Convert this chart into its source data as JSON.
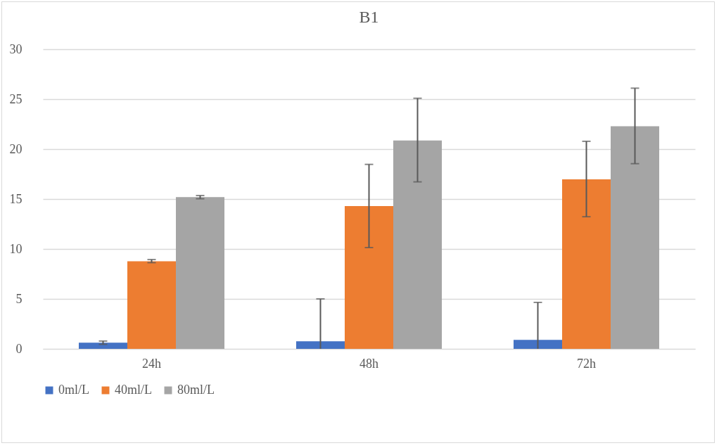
{
  "chart_data": {
    "type": "bar",
    "title": "B1",
    "categories": [
      "24h",
      "48h",
      "72h"
    ],
    "series": [
      {
        "name": "0ml/L",
        "color": "#4472c4",
        "values": [
          0.61,
          0.75,
          0.9
        ],
        "errors": [
          [
            0.45,
            0.78
          ],
          [
            0,
            5.0
          ],
          [
            0,
            4.65
          ]
        ]
      },
      {
        "name": "40ml/L",
        "color": "#ed7d31",
        "values": [
          8.77,
          14.3,
          16.98
        ],
        "errors": [
          [
            8.63,
            8.94
          ],
          [
            10.14,
            18.47
          ],
          [
            13.23,
            20.78
          ]
        ]
      },
      {
        "name": "80ml/L",
        "color": "#a5a5a5",
        "values": [
          15.19,
          20.87,
          22.29
        ],
        "errors": [
          [
            15.03,
            15.35
          ],
          [
            16.72,
            25.09
          ],
          [
            18.54,
            26.1
          ]
        ]
      }
    ],
    "ylim": [
      0,
      30
    ],
    "yticks": [
      0,
      5,
      10,
      15,
      20,
      25,
      30
    ],
    "grid": "y",
    "legend": "bottom"
  }
}
